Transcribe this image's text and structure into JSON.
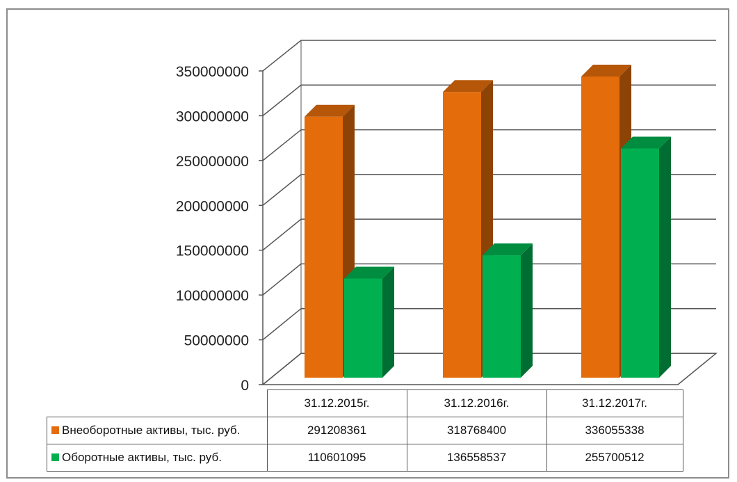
{
  "chart_data": {
    "type": "bar",
    "title": "",
    "xlabel": "",
    "ylabel": "",
    "categories": [
      "31.12.2015г.",
      "31.12.2016г.",
      "31.12.2017г."
    ],
    "series": [
      {
        "name": "Внеоборотные активы, тыс. руб.",
        "color": "#e46c0a",
        "values": [
          291208361,
          318768400,
          336055338
        ]
      },
      {
        "name": "Оборотные активы, тыс. руб.",
        "color": "#00b050",
        "values": [
          110601095,
          136558537,
          255700512
        ]
      }
    ],
    "ylim": [
      0,
      350000000
    ],
    "yticks": [
      "0",
      "50000000",
      "100000000",
      "150000000",
      "200000000",
      "250000000",
      "300000000",
      "350000000"
    ],
    "grid": true,
    "legend": "data table below chart"
  }
}
